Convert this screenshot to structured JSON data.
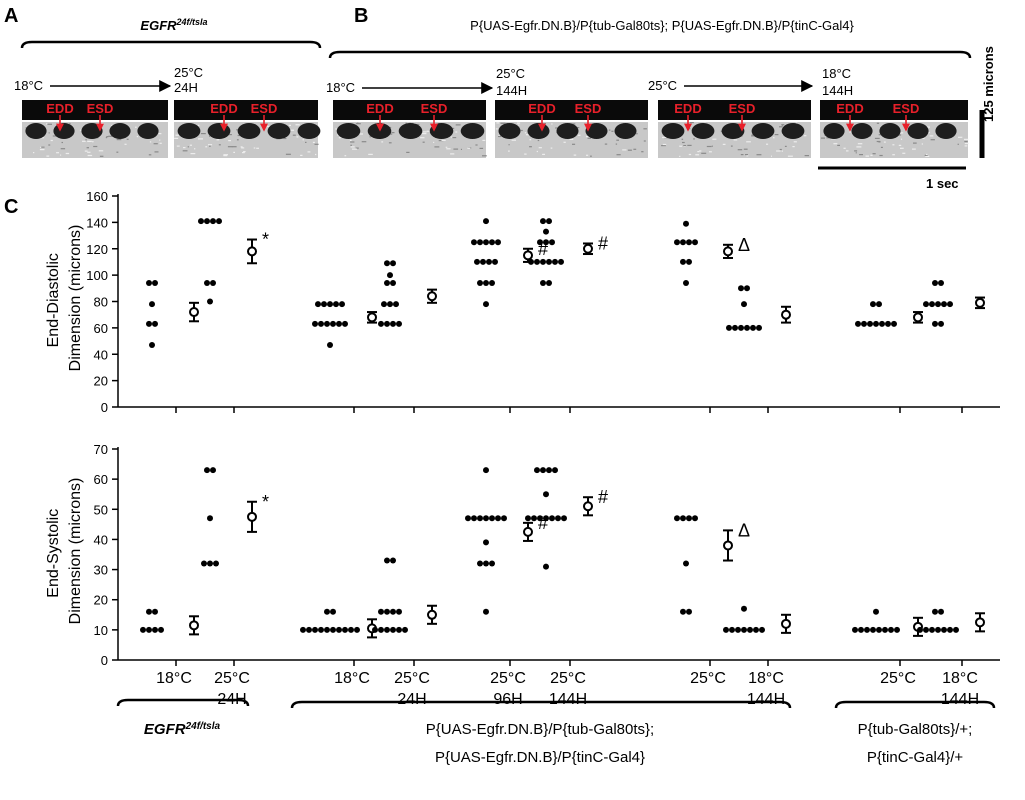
{
  "panels": {
    "A": "A",
    "B": "B",
    "C": "C"
  },
  "panel_a": {
    "genotype": "EGFR",
    "genotype_sup": "24f/tsla",
    "arrow_from": "18°C",
    "arrow_to": "25°C",
    "arrow_to_time": "24H",
    "strip_labels": [
      "EDD",
      "ESD"
    ]
  },
  "panel_b": {
    "genotype": "P{UAS-Egfr.DN.B}/P{tub-Gal80ts}; P{UAS-Egfr.DN.B}/P{tinC-Gal4}",
    "arrows": [
      {
        "from": "18°C",
        "to": "25°C",
        "time": "144H"
      },
      {
        "from": "25°C",
        "to": "18°C",
        "time": "144H"
      }
    ],
    "strip_labels": [
      "EDD",
      "ESD"
    ]
  },
  "scalebars": {
    "vertical": "125 microns",
    "horizontal": "1 sec"
  },
  "x_axis": {
    "group_labels": [
      [
        "18°C",
        ""
      ],
      [
        "25°C",
        "24H"
      ],
      [
        "18°C",
        ""
      ],
      [
        "25°C",
        "24H"
      ],
      [
        "25°C",
        "96H"
      ],
      [
        "25°C",
        "144H"
      ],
      [
        "25°C",
        ""
      ],
      [
        "18°C",
        "144H"
      ],
      [
        "25°C",
        ""
      ],
      [
        "18°C",
        "144H"
      ]
    ],
    "genotype_groups": [
      {
        "line1": "EGFR",
        "line1_sup": "24f/tsla",
        "line2": ""
      },
      {
        "line1": "P{UAS-Egfr.DN.B}/P{tub-Gal80ts};",
        "line2": "P{UAS-Egfr.DN.B}/P{tinC-Gal4}"
      },
      {
        "line1": "P{tub-Gal80ts}/+;",
        "line2": "P{tinC-Gal4}/+"
      }
    ]
  },
  "chart_data": [
    {
      "type": "scatter",
      "title": "",
      "ylabel": "End-Diastolic Dimension (microns)",
      "ylabel_lines": [
        "End-Diastolic",
        "Dimension (microns)"
      ],
      "ylim": [
        0,
        160
      ],
      "yticks": [
        0,
        20,
        40,
        60,
        80,
        100,
        120,
        140,
        160
      ],
      "groups": [
        {
          "label": "18°C",
          "points": [
            94,
            94,
            78,
            63,
            63,
            47
          ],
          "mean": 72,
          "error": 7,
          "annotation": ""
        },
        {
          "label": "25°C 24H",
          "points": [
            141,
            141,
            141,
            141,
            94,
            94,
            80
          ],
          "mean": 118,
          "error": 9,
          "annotation": "*"
        },
        {
          "label": "18°C",
          "points": [
            78,
            78,
            78,
            78,
            78,
            63,
            63,
            63,
            63,
            63,
            63,
            47
          ],
          "mean": 68,
          "error": 4,
          "annotation": ""
        },
        {
          "label": "25°C 24H",
          "points": [
            109,
            109,
            100,
            94,
            94,
            78,
            78,
            78,
            63,
            63,
            63,
            63
          ],
          "mean": 84,
          "error": 5,
          "annotation": ""
        },
        {
          "label": "25°C 96H",
          "points": [
            141,
            125,
            125,
            125,
            125,
            125,
            110,
            110,
            110,
            110,
            94,
            94,
            94,
            78
          ],
          "mean": 115,
          "error": 5,
          "annotation": "#"
        },
        {
          "label": "25°C 144H",
          "points": [
            141,
            141,
            133,
            125,
            125,
            125,
            110,
            110,
            110,
            110,
            110,
            110,
            94,
            94
          ],
          "mean": 120,
          "error": 4,
          "annotation": "#"
        },
        {
          "label": "25°C",
          "points": [
            139,
            125,
            125,
            125,
            125,
            110,
            110,
            94
          ],
          "mean": 118,
          "error": 5,
          "annotation": "Δ"
        },
        {
          "label": "18°C 144H",
          "points": [
            90,
            90,
            78,
            60,
            60,
            60,
            60,
            60,
            60
          ],
          "mean": 70,
          "error": 6,
          "annotation": ""
        },
        {
          "label": "25°C",
          "points": [
            78,
            78,
            63,
            63,
            63,
            63,
            63,
            63,
            63
          ],
          "mean": 68,
          "error": 4,
          "annotation": ""
        },
        {
          "label": "18°C 144H",
          "points": [
            94,
            94,
            78,
            78,
            78,
            78,
            78,
            63,
            63
          ],
          "mean": 79,
          "error": 4,
          "annotation": ""
        }
      ]
    },
    {
      "type": "scatter",
      "title": "",
      "ylabel": "End-Systolic Dimension (microns)",
      "ylabel_lines": [
        "End-Systolic",
        "Dimension (microns)"
      ],
      "ylim": [
        0,
        70
      ],
      "yticks": [
        0,
        10,
        20,
        30,
        40,
        50,
        60,
        70
      ],
      "groups": [
        {
          "label": "18°C",
          "points": [
            16,
            16,
            10,
            10,
            10,
            10
          ],
          "mean": 11.5,
          "error": 3,
          "annotation": ""
        },
        {
          "label": "25°C 24H",
          "points": [
            63,
            63,
            47,
            32,
            32,
            32
          ],
          "mean": 47.5,
          "error": 5,
          "annotation": "*"
        },
        {
          "label": "18°C",
          "points": [
            16,
            16,
            10,
            10,
            10,
            10,
            10,
            10,
            10,
            10,
            10,
            10
          ],
          "mean": 10.5,
          "error": 3,
          "annotation": ""
        },
        {
          "label": "25°C 24H",
          "points": [
            33,
            33,
            16,
            16,
            16,
            16,
            10,
            10,
            10,
            10,
            10,
            10
          ],
          "mean": 15,
          "error": 3,
          "annotation": ""
        },
        {
          "label": "25°C 96H",
          "points": [
            63,
            47,
            47,
            47,
            47,
            47,
            47,
            47,
            39,
            32,
            32,
            32,
            16
          ],
          "mean": 42.5,
          "error": 3,
          "annotation": "#"
        },
        {
          "label": "25°C 144H",
          "points": [
            63,
            63,
            63,
            63,
            55,
            47,
            47,
            47,
            47,
            47,
            47,
            47,
            31
          ],
          "mean": 51,
          "error": 3,
          "annotation": "#"
        },
        {
          "label": "25°C",
          "points": [
            47,
            47,
            47,
            47,
            32,
            16,
            16
          ],
          "mean": 38,
          "error": 5,
          "annotation": "Δ"
        },
        {
          "label": "18°C 144H",
          "points": [
            17,
            10,
            10,
            10,
            10,
            10,
            10,
            10
          ],
          "mean": 12,
          "error": 3,
          "annotation": ""
        },
        {
          "label": "25°C",
          "points": [
            16,
            10,
            10,
            10,
            10,
            10,
            10,
            10,
            10
          ],
          "mean": 11,
          "error": 3,
          "annotation": ""
        },
        {
          "label": "18°C 144H",
          "points": [
            16,
            16,
            10,
            10,
            10,
            10,
            10,
            10,
            10
          ],
          "mean": 12.5,
          "error": 3,
          "annotation": ""
        }
      ]
    }
  ]
}
